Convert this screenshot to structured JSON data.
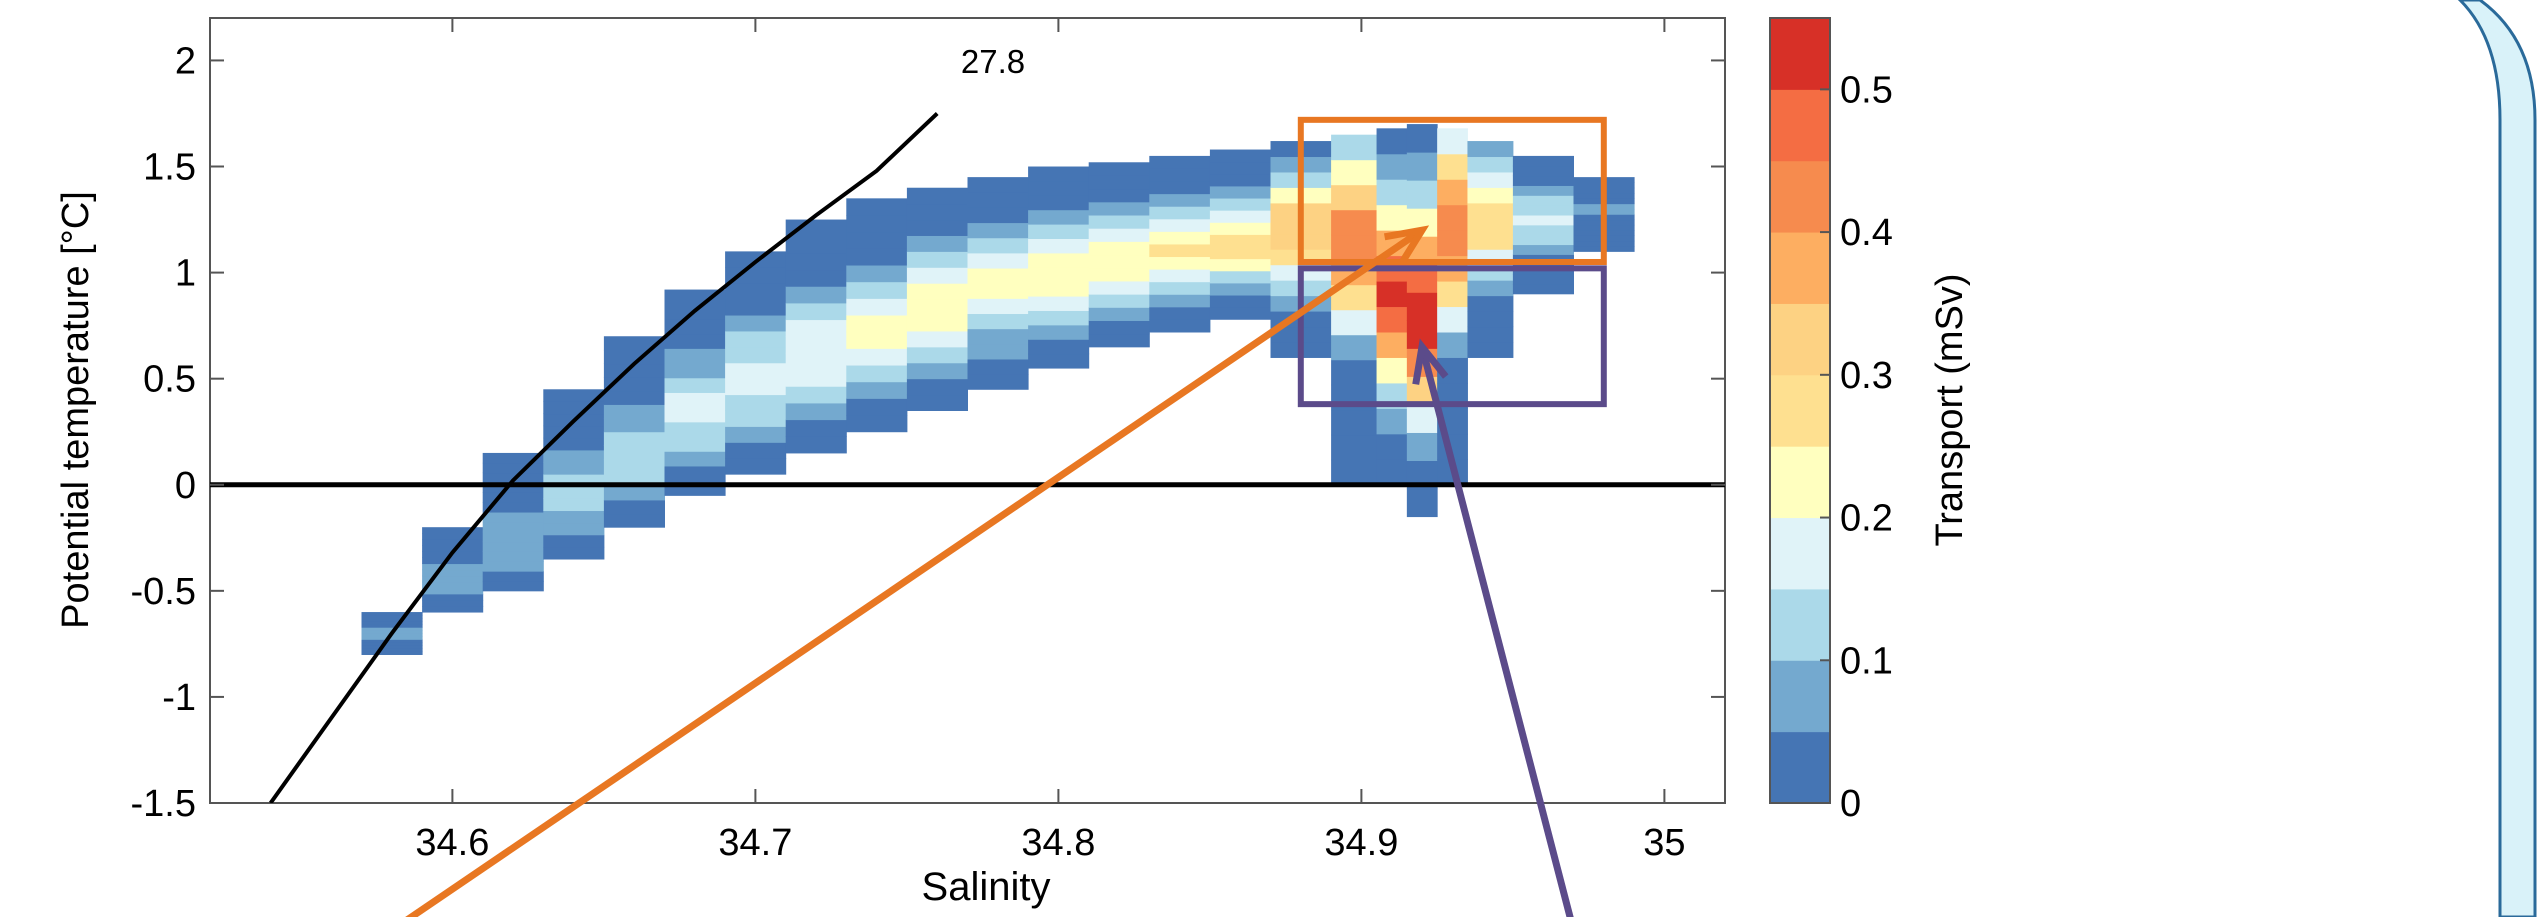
{
  "chart_data": {
    "type": "heatmap",
    "title": "",
    "xlabel": "Salinity",
    "ylabel": "Potential temperature [°C]",
    "xlim": [
      34.52,
      35.02
    ],
    "ylim": [
      -1.5,
      2.2
    ],
    "xticks": [
      {
        "value": 34.6,
        "label": "34.6"
      },
      {
        "value": 34.7,
        "label": "34.7"
      },
      {
        "value": 34.8,
        "label": "34.8"
      },
      {
        "value": 34.9,
        "label": "34.9"
      },
      {
        "value": 35.0,
        "label": "35"
      }
    ],
    "yticks": [
      {
        "value": 2,
        "label": "2"
      },
      {
        "value": 1.5,
        "label": "1.5"
      },
      {
        "value": 1,
        "label": "1"
      },
      {
        "value": 0.5,
        "label": "0.5"
      },
      {
        "value": 0,
        "label": "0"
      },
      {
        "value": -0.5,
        "label": "-0.5"
      },
      {
        "value": -1,
        "label": "-1"
      },
      {
        "value": -1.5,
        "label": "-1.5"
      }
    ],
    "colorbar": {
      "label": "Transport (mSv)",
      "min": 0,
      "max": 0.55,
      "levels": [
        0,
        0.05,
        0.1,
        0.15,
        0.2,
        0.25,
        0.3,
        0.35,
        0.4,
        0.45,
        0.5,
        0.55
      ],
      "colors": [
        "#4575b4",
        "#74a9cf",
        "#abd9e9",
        "#e0f3f8",
        "#ffffbf",
        "#fee090",
        "#fdd283",
        "#fdae61",
        "#f68b4e",
        "#f46d43",
        "#d73027"
      ],
      "ticks": [
        {
          "value": 0,
          "label": "0"
        },
        {
          "value": 0.1,
          "label": "0.1"
        },
        {
          "value": 0.2,
          "label": "0.2"
        },
        {
          "value": 0.3,
          "label": "0.3"
        },
        {
          "value": 0.4,
          "label": "0.4"
        },
        {
          "value": 0.5,
          "label": "0.5"
        }
      ]
    },
    "isopycnal": {
      "label": "27.8",
      "points": [
        [
          34.54,
          -1.5
        ],
        [
          34.56,
          -1.1
        ],
        [
          34.58,
          -0.7
        ],
        [
          34.6,
          -0.32
        ],
        [
          34.62,
          0.02
        ],
        [
          34.64,
          0.3
        ],
        [
          34.66,
          0.57
        ],
        [
          34.68,
          0.82
        ],
        [
          34.7,
          1.05
        ],
        [
          34.72,
          1.27
        ],
        [
          34.74,
          1.48
        ],
        [
          34.76,
          1.75
        ]
      ]
    },
    "zero_line": 0,
    "water_mass_distribution": [
      {
        "s": 34.58,
        "t_low": -0.8,
        "t_high": -0.6,
        "t_core": -0.7,
        "peak": 0.06
      },
      {
        "s": 34.6,
        "t_low": -0.6,
        "t_high": -0.2,
        "t_core": -0.45,
        "peak": 0.08
      },
      {
        "s": 34.62,
        "t_low": -0.5,
        "t_high": 0.15,
        "t_core": -0.25,
        "peak": 0.1
      },
      {
        "s": 34.64,
        "t_low": -0.35,
        "t_high": 0.45,
        "t_core": -0.05,
        "peak": 0.12
      },
      {
        "s": 34.66,
        "t_low": -0.2,
        "t_high": 0.7,
        "t_core": 0.15,
        "peak": 0.14
      },
      {
        "s": 34.68,
        "t_low": -0.05,
        "t_high": 0.92,
        "t_core": 0.35,
        "peak": 0.16
      },
      {
        "s": 34.7,
        "t_low": 0.05,
        "t_high": 1.1,
        "t_core": 0.5,
        "peak": 0.18
      },
      {
        "s": 34.72,
        "t_low": 0.15,
        "t_high": 1.25,
        "t_core": 0.62,
        "peak": 0.2
      },
      {
        "s": 34.74,
        "t_low": 0.25,
        "t_high": 1.35,
        "t_core": 0.74,
        "peak": 0.22
      },
      {
        "s": 34.76,
        "t_low": 0.35,
        "t_high": 1.4,
        "t_core": 0.84,
        "peak": 0.22
      },
      {
        "s": 34.78,
        "t_low": 0.45,
        "t_high": 1.45,
        "t_core": 0.93,
        "peak": 0.22
      },
      {
        "s": 34.8,
        "t_low": 0.55,
        "t_high": 1.5,
        "t_core": 1.0,
        "peak": 0.24
      },
      {
        "s": 34.82,
        "t_low": 0.65,
        "t_high": 1.52,
        "t_core": 1.06,
        "peak": 0.24
      },
      {
        "s": 34.84,
        "t_low": 0.72,
        "t_high": 1.55,
        "t_core": 1.1,
        "peak": 0.26
      },
      {
        "s": 34.86,
        "t_low": 0.78,
        "t_high": 1.58,
        "t_core": 1.14,
        "peak": 0.28
      },
      {
        "s": 34.88,
        "t_low": 0.6,
        "t_high": 1.62,
        "t_core": 1.2,
        "peak": 0.35
      },
      {
        "s": 34.9,
        "t_low": 0.0,
        "t_high": 1.65,
        "t_core": 1.15,
        "peak": 0.42
      },
      {
        "s": 34.91,
        "t_low": 0.0,
        "t_high": 1.68,
        "t_core": 0.9,
        "peak": 0.5
      },
      {
        "s": 34.92,
        "t_low": -0.15,
        "t_high": 1.7,
        "t_core": 0.8,
        "peak": 0.55
      },
      {
        "s": 34.93,
        "t_low": 0.0,
        "t_high": 1.68,
        "t_core": 1.2,
        "peak": 0.45
      },
      {
        "s": 34.94,
        "t_low": 0.6,
        "t_high": 1.62,
        "t_core": 1.25,
        "peak": 0.3
      },
      {
        "s": 34.96,
        "t_low": 0.9,
        "t_high": 1.55,
        "t_core": 1.25,
        "peak": 0.16
      },
      {
        "s": 34.98,
        "t_low": 1.1,
        "t_high": 1.45,
        "t_core": 1.3,
        "peak": 0.06
      }
    ],
    "highlight_boxes": [
      {
        "name": "upper",
        "color": "#e87722",
        "s": [
          34.88,
          34.98
        ],
        "t": [
          1.05,
          1.72
        ]
      },
      {
        "name": "lower",
        "color": "#5b4b8a",
        "s": [
          34.88,
          34.98
        ],
        "t": [
          0.38,
          1.02
        ]
      }
    ],
    "arrows": [
      {
        "color": "#e87722",
        "from": [
          34.58,
          -2.1
        ],
        "to": [
          34.92,
          1.2
        ]
      },
      {
        "color": "#5b4b8a",
        "from": [
          34.97,
          -2.1
        ],
        "to": [
          34.92,
          0.65
        ]
      }
    ]
  },
  "decor": {
    "panel_fill": "#d9f2f9",
    "panel_stroke": "#2a6a9a"
  }
}
